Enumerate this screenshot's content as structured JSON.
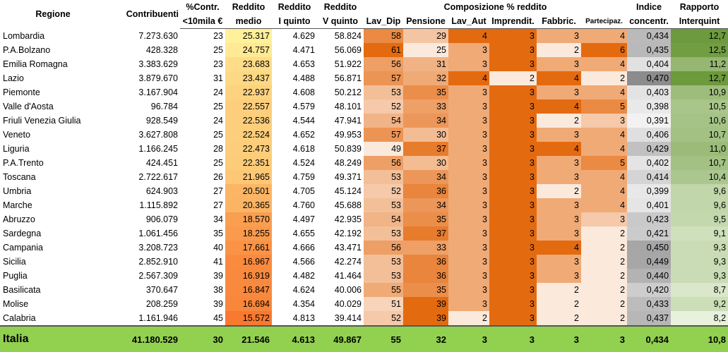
{
  "headers": {
    "regione": "Regione",
    "contribuenti": "Contribuenti",
    "contr_top": "%Contr.",
    "contr_bottom": "<10mila €",
    "reddito_medio_top": "Reddito",
    "reddito_medio_bottom": "medio",
    "reddito_i_top": "Reddito",
    "reddito_i_bottom": "I quinto",
    "reddito_v_top": "Reddito",
    "reddito_v_bottom": "V quinto",
    "composizione": "Composizione % reddito",
    "lav_dip": "Lav_Dip",
    "pensione": "Pensione",
    "lav_aut": "Lav_Aut",
    "imprendit": "Imprendit.",
    "fabbric": "Fabbric.",
    "partecipaz": "Partecipaz.",
    "indice_top": "Indice",
    "indice_bottom": "concentr.",
    "rapporto_top": "Rapporto",
    "rapporto_bottom": "Interquint"
  },
  "rows": [
    {
      "regione": "Lombardia",
      "contribuenti": "7.273.630",
      "contr": "23",
      "reddito_medio": "25.317",
      "reddito_i": "4.629",
      "reddito_v": "58.824",
      "lav_dip": "58",
      "pensione": "29",
      "lav_aut": "4",
      "imprendit": "3",
      "fabbric": "3",
      "partecipaz": "4",
      "indice": "0,434",
      "rapporto": "12,7"
    },
    {
      "regione": "P.A.Bolzano",
      "contribuenti": "428.328",
      "contr": "25",
      "reddito_medio": "24.757",
      "reddito_i": "4.471",
      "reddito_v": "56.069",
      "lav_dip": "61",
      "pensione": "25",
      "lav_aut": "3",
      "imprendit": "3",
      "fabbric": "2",
      "partecipaz": "6",
      "indice": "0,435",
      "rapporto": "12,5"
    },
    {
      "regione": "Emilia Romagna",
      "contribuenti": "3.383.629",
      "contr": "23",
      "reddito_medio": "23.683",
      "reddito_i": "4.653",
      "reddito_v": "51.922",
      "lav_dip": "56",
      "pensione": "31",
      "lav_aut": "3",
      "imprendit": "3",
      "fabbric": "3",
      "partecipaz": "4",
      "indice": "0,404",
      "rapporto": "11,2"
    },
    {
      "regione": "Lazio",
      "contribuenti": "3.879.670",
      "contr": "31",
      "reddito_medio": "23.437",
      "reddito_i": "4.488",
      "reddito_v": "56.871",
      "lav_dip": "57",
      "pensione": "32",
      "lav_aut": "4",
      "imprendit": "2",
      "fabbric": "4",
      "partecipaz": "2",
      "indice": "0,470",
      "rapporto": "12,7"
    },
    {
      "regione": "Piemonte",
      "contribuenti": "3.167.904",
      "contr": "24",
      "reddito_medio": "22.937",
      "reddito_i": "4.608",
      "reddito_v": "50.212",
      "lav_dip": "53",
      "pensione": "35",
      "lav_aut": "3",
      "imprendit": "3",
      "fabbric": "3",
      "partecipaz": "4",
      "indice": "0,403",
      "rapporto": "10,9"
    },
    {
      "regione": "Valle d'Aosta",
      "contribuenti": "96.784",
      "contr": "25",
      "reddito_medio": "22.557",
      "reddito_i": "4.579",
      "reddito_v": "48.101",
      "lav_dip": "52",
      "pensione": "33",
      "lav_aut": "3",
      "imprendit": "3",
      "fabbric": "4",
      "partecipaz": "5",
      "indice": "0,398",
      "rapporto": "10,5"
    },
    {
      "regione": "Friuli Venezia Giulia",
      "contribuenti": "928.549",
      "contr": "24",
      "reddito_medio": "22.536",
      "reddito_i": "4.544",
      "reddito_v": "47.941",
      "lav_dip": "54",
      "pensione": "34",
      "lav_aut": "3",
      "imprendit": "3",
      "fabbric": "2",
      "partecipaz": "3",
      "indice": "0,391",
      "rapporto": "10,6"
    },
    {
      "regione": "Veneto",
      "contribuenti": "3.627.808",
      "contr": "25",
      "reddito_medio": "22.524",
      "reddito_i": "4.652",
      "reddito_v": "49.953",
      "lav_dip": "57",
      "pensione": "30",
      "lav_aut": "3",
      "imprendit": "3",
      "fabbric": "3",
      "partecipaz": "4",
      "indice": "0,406",
      "rapporto": "10,7"
    },
    {
      "regione": "Liguria",
      "contribuenti": "1.166.245",
      "contr": "28",
      "reddito_medio": "22.473",
      "reddito_i": "4.618",
      "reddito_v": "50.839",
      "lav_dip": "49",
      "pensione": "37",
      "lav_aut": "3",
      "imprendit": "3",
      "fabbric": "4",
      "partecipaz": "4",
      "indice": "0,429",
      "rapporto": "11,0"
    },
    {
      "regione": "P.A.Trento",
      "contribuenti": "424.451",
      "contr": "25",
      "reddito_medio": "22.351",
      "reddito_i": "4.524",
      "reddito_v": "48.249",
      "lav_dip": "56",
      "pensione": "30",
      "lav_aut": "3",
      "imprendit": "3",
      "fabbric": "3",
      "partecipaz": "5",
      "indice": "0,402",
      "rapporto": "10,7"
    },
    {
      "regione": "Toscana",
      "contribuenti": "2.722.617",
      "contr": "26",
      "reddito_medio": "21.965",
      "reddito_i": "4.759",
      "reddito_v": "49.371",
      "lav_dip": "53",
      "pensione": "34",
      "lav_aut": "3",
      "imprendit": "3",
      "fabbric": "3",
      "partecipaz": "4",
      "indice": "0,414",
      "rapporto": "10,4"
    },
    {
      "regione": "Umbria",
      "contribuenti": "624.903",
      "contr": "27",
      "reddito_medio": "20.501",
      "reddito_i": "4.705",
      "reddito_v": "45.124",
      "lav_dip": "52",
      "pensione": "36",
      "lav_aut": "3",
      "imprendit": "3",
      "fabbric": "2",
      "partecipaz": "4",
      "indice": "0,399",
      "rapporto": "9,6"
    },
    {
      "regione": "Marche",
      "contribuenti": "1.115.892",
      "contr": "27",
      "reddito_medio": "20.365",
      "reddito_i": "4.760",
      "reddito_v": "45.688",
      "lav_dip": "53",
      "pensione": "34",
      "lav_aut": "3",
      "imprendit": "3",
      "fabbric": "3",
      "partecipaz": "4",
      "indice": "0,401",
      "rapporto": "9,6"
    },
    {
      "regione": "Abruzzo",
      "contribuenti": "906.079",
      "contr": "34",
      "reddito_medio": "18.570",
      "reddito_i": "4.497",
      "reddito_v": "42.935",
      "lav_dip": "54",
      "pensione": "35",
      "lav_aut": "3",
      "imprendit": "3",
      "fabbric": "3",
      "partecipaz": "3",
      "indice": "0,423",
      "rapporto": "9,5"
    },
    {
      "regione": "Sardegna",
      "contribuenti": "1.061.456",
      "contr": "35",
      "reddito_medio": "18.255",
      "reddito_i": "4.655",
      "reddito_v": "42.192",
      "lav_dip": "53",
      "pensione": "37",
      "lav_aut": "3",
      "imprendit": "3",
      "fabbric": "3",
      "partecipaz": "2",
      "indice": "0,421",
      "rapporto": "9,1"
    },
    {
      "regione": "Campania",
      "contribuenti": "3.208.723",
      "contr": "40",
      "reddito_medio": "17.661",
      "reddito_i": "4.666",
      "reddito_v": "43.471",
      "lav_dip": "56",
      "pensione": "33",
      "lav_aut": "3",
      "imprendit": "3",
      "fabbric": "4",
      "partecipaz": "2",
      "indice": "0,450",
      "rapporto": "9,3"
    },
    {
      "regione": "Sicilia",
      "contribuenti": "2.852.910",
      "contr": "41",
      "reddito_medio": "16.967",
      "reddito_i": "4.566",
      "reddito_v": "42.274",
      "lav_dip": "53",
      "pensione": "36",
      "lav_aut": "3",
      "imprendit": "3",
      "fabbric": "3",
      "partecipaz": "2",
      "indice": "0,449",
      "rapporto": "9,3"
    },
    {
      "regione": "Puglia",
      "contribuenti": "2.567.309",
      "contr": "39",
      "reddito_medio": "16.919",
      "reddito_i": "4.482",
      "reddito_v": "41.464",
      "lav_dip": "53",
      "pensione": "36",
      "lav_aut": "3",
      "imprendit": "3",
      "fabbric": "3",
      "partecipaz": "2",
      "indice": "0,440",
      "rapporto": "9,3"
    },
    {
      "regione": "Basilicata",
      "contribuenti": "370.647",
      "contr": "38",
      "reddito_medio": "16.847",
      "reddito_i": "4.624",
      "reddito_v": "40.006",
      "lav_dip": "55",
      "pensione": "35",
      "lav_aut": "3",
      "imprendit": "3",
      "fabbric": "2",
      "partecipaz": "2",
      "indice": "0,420",
      "rapporto": "8,7"
    },
    {
      "regione": "Molise",
      "contribuenti": "208.259",
      "contr": "39",
      "reddito_medio": "16.694",
      "reddito_i": "4.354",
      "reddito_v": "40.029",
      "lav_dip": "51",
      "pensione": "39",
      "lav_aut": "3",
      "imprendit": "3",
      "fabbric": "2",
      "partecipaz": "2",
      "indice": "0,433",
      "rapporto": "9,2"
    },
    {
      "regione": "Calabria",
      "contribuenti": "1.161.946",
      "contr": "45",
      "reddito_medio": "15.572",
      "reddito_i": "4.813",
      "reddito_v": "39.414",
      "lav_dip": "52",
      "pensione": "39",
      "lav_aut": "2",
      "imprendit": "3",
      "fabbric": "2",
      "partecipaz": "2",
      "indice": "0,437",
      "rapporto": "8,2"
    }
  ],
  "total": {
    "regione": "Italia",
    "contribuenti": "41.180.529",
    "contr": "30",
    "reddito_medio": "21.546",
    "reddito_i": "4.613",
    "reddito_v": "49.867",
    "lav_dip": "55",
    "pensione": "32",
    "lav_aut": "3",
    "imprendit": "3",
    "fabbric": "3",
    "partecipaz": "3",
    "indice": "0,434",
    "rapporto": "10,8"
  },
  "colors": {
    "total_fill": "#92d050",
    "reddito_low": "#f8792f",
    "reddito_high": "#fff09a",
    "orange_low": "#fbe9dc",
    "orange_high": "#e46a10",
    "grey_low": "#f2f2f2",
    "grey_high": "#8c8c8c",
    "green_low": "#e8f1dc",
    "green_high": "#6c9a3c"
  }
}
